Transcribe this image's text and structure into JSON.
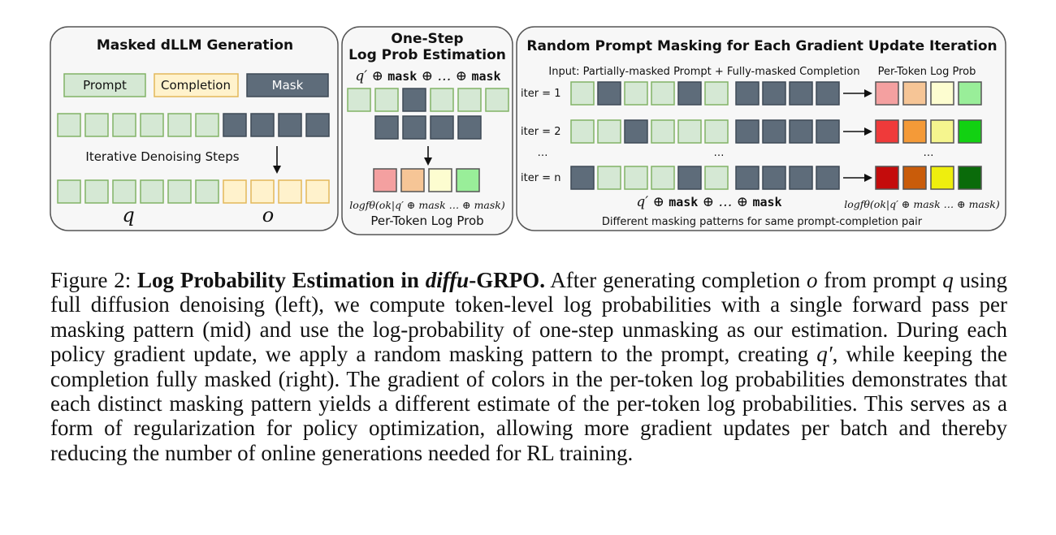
{
  "colors": {
    "prompt_fill": "#d5e8d4",
    "prompt_stroke": "#82b366",
    "completion_fill": "#fff2cc",
    "completion_stroke": "#e3b85a",
    "mask_fill": "#5e6c7a",
    "mask_stroke": "#3f4a56",
    "pastel_red": "#f4a0a0",
    "pastel_orange": "#f6c596",
    "pastel_yellow": "#fdfdd0",
    "pastel_green": "#99ee99",
    "mid_red": "#ef3a3a",
    "mid_orange": "#f49a38",
    "mid_yellow": "#f5f58e",
    "mid_green": "#12d112",
    "dark_red": "#c40c0c",
    "dark_orange": "#c95c0a",
    "dark_yellow": "#eeee0e",
    "dark_green": "#0a6b0a"
  },
  "panel_left": {
    "title": "Masked dLLM Generation",
    "legend_prompt": "Prompt",
    "legend_completion": "Completion",
    "legend_mask": "Mask",
    "steps_label": "Iterative Denoising Steps",
    "q_label": "q",
    "o_label": "o"
  },
  "panel_mid": {
    "title_line1": "One-Step",
    "title_line2": "Log Prob Estimation",
    "formula_prefix": "q′ ⊕ ",
    "formula_mask1": "mask",
    "formula_middle": " ⊕ … ⊕ ",
    "formula_mask2": "mask",
    "logprob_formula": "logfθ(ok|q′ ⊕ mask … ⊕ mask)",
    "caption": "Per-Token Log Prob"
  },
  "panel_right": {
    "title": "Random Prompt Masking for Each Gradient Update Iteration",
    "input_label": "Input: Partially-masked Prompt + Fully-masked Completion",
    "output_label": "Per-Token Log Prob",
    "iter_1": "iter = 1",
    "iter_2": "iter = 2",
    "iter_n": "iter = n",
    "ellipsis": "…",
    "formula_prefix": "q′ ⊕ ",
    "formula_mask1": "mask",
    "formula_middle": " ⊕ … ⊕ ",
    "formula_mask2": "mask",
    "logprob_formula": "logfθ(ok|q′ ⊕ mask … ⊕ mask)",
    "bottom_label": "Different masking patterns for same prompt-completion pair"
  },
  "caption": {
    "label": "Figure 2: ",
    "bold_title_a": "Log Probability Estimation in ",
    "bold_title_italic": "diffu",
    "bold_title_b": "-GRPO.",
    "text_1": " After generating completion ",
    "var_o": "o",
    "text_2": " from prompt ",
    "var_q": "q",
    "text_3": " using full diffusion denoising (left), we compute token-level log probabilities with a single forward pass per masking pattern (mid) and use the log-probability of one-step unmasking as our estimation. During each policy gradient update, we apply a random masking pattern to the prompt, creating ",
    "var_q_prime": "q′",
    "text_4": ", while keeping the completion fully masked (right). The gradient of colors in the per-token log probabilities demonstrates that each distinct masking pattern yields a different estimate of the per-token log probabilities. This serves as a form of regularization for policy optimization, allowing more gradient updates per batch and thereby reducing the number of online generations needed for RL training."
  }
}
